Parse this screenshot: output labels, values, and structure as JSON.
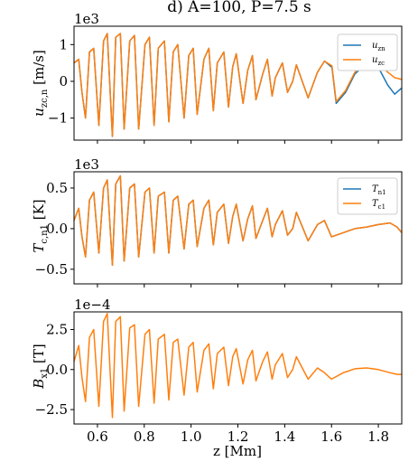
{
  "figure": {
    "title": "d) A=100, P=7.5 s",
    "xlabel": "z [Mm]",
    "xlim": [
      0.5,
      1.9
    ],
    "xticks": [
      0.6,
      0.8,
      1.0,
      1.2,
      1.4,
      1.6,
      1.8
    ],
    "xtick_labels": [
      "0.6",
      "0.8",
      "1.0",
      "1.2",
      "1.4",
      "1.6",
      "1.8"
    ]
  },
  "colors": {
    "series_a": "#1f77b4",
    "series_b": "#ff7f0e"
  },
  "chart_data": [
    {
      "type": "line",
      "title": "d) A=100, P=7.5 s",
      "ylabel_main": "u",
      "ylabel_sub": "zc,n",
      "ylabel_unit": " [m/s]",
      "scale_label": "1e3",
      "xlim": [
        0.5,
        1.9
      ],
      "ylim": [
        -1.6,
        1.5
      ],
      "yticks": [
        -1,
        0,
        1
      ],
      "ytick_labels": [
        "−1",
        "0",
        "1"
      ],
      "legend_position": "top-right",
      "legend": [
        {
          "main": "u",
          "sub": "zn"
        },
        {
          "main": "u",
          "sub": "zc"
        }
      ],
      "series": [
        {
          "name": "u_zn",
          "x": [
            0.5,
            0.52,
            0.534,
            0.549,
            0.566,
            0.584,
            0.606,
            0.626,
            0.642,
            0.664,
            0.678,
            0.698,
            0.714,
            0.738,
            0.758,
            0.776,
            0.803,
            0.822,
            0.842,
            0.86,
            0.886,
            0.905,
            0.924,
            0.943,
            0.97,
            0.99,
            1.009,
            1.026,
            1.055,
            1.076,
            1.095,
            1.112,
            1.14,
            1.16,
            1.178,
            1.193,
            1.222,
            1.242,
            1.262,
            1.277,
            1.306,
            1.326,
            1.346,
            1.36,
            1.39,
            1.412,
            1.434,
            1.45,
            1.5,
            1.54,
            1.57,
            1.602,
            1.62,
            1.66,
            1.7,
            1.75,
            1.8,
            1.84,
            1.87,
            1.9
          ],
          "y": [
            0.5,
            0.6,
            -0.3,
            -1.0,
            0.8,
            0.9,
            -1.2,
            1.1,
            1.3,
            -1.5,
            1.2,
            1.3,
            -1.3,
            1.1,
            1.25,
            -1.3,
            1.0,
            1.2,
            -1.2,
            0.9,
            1.1,
            -1.1,
            0.8,
            1.0,
            -1.0,
            0.7,
            0.9,
            -0.9,
            0.6,
            0.9,
            -0.8,
            0.5,
            0.8,
            -0.7,
            0.4,
            0.75,
            -0.6,
            0.3,
            0.7,
            -0.5,
            0.2,
            0.6,
            -0.4,
            0.1,
            0.5,
            -0.3,
            0.0,
            0.45,
            -0.45,
            0.25,
            0.55,
            0.38,
            -0.6,
            -0.3,
            0.2,
            0.5,
            0.38,
            -0.1,
            -0.35,
            -0.18
          ]
        },
        {
          "name": "u_zc",
          "x": [
            0.5,
            0.52,
            0.534,
            0.549,
            0.566,
            0.584,
            0.606,
            0.626,
            0.642,
            0.664,
            0.678,
            0.698,
            0.714,
            0.738,
            0.758,
            0.776,
            0.803,
            0.822,
            0.842,
            0.86,
            0.886,
            0.905,
            0.924,
            0.943,
            0.97,
            0.99,
            1.009,
            1.026,
            1.055,
            1.076,
            1.095,
            1.112,
            1.14,
            1.16,
            1.178,
            1.193,
            1.222,
            1.242,
            1.262,
            1.277,
            1.306,
            1.326,
            1.346,
            1.36,
            1.39,
            1.412,
            1.434,
            1.45,
            1.5,
            1.54,
            1.57,
            1.602,
            1.62,
            1.66,
            1.7,
            1.75,
            1.8,
            1.84,
            1.87,
            1.9
          ],
          "y": [
            0.5,
            0.6,
            -0.3,
            -1.0,
            0.8,
            0.9,
            -1.2,
            1.1,
            1.3,
            -1.5,
            1.2,
            1.3,
            -1.3,
            1.1,
            1.25,
            -1.3,
            1.0,
            1.2,
            -1.2,
            0.9,
            1.1,
            -1.1,
            0.8,
            1.0,
            -1.0,
            0.7,
            0.9,
            -0.9,
            0.6,
            0.9,
            -0.8,
            0.5,
            0.8,
            -0.7,
            0.4,
            0.75,
            -0.6,
            0.3,
            0.7,
            -0.5,
            0.2,
            0.6,
            -0.4,
            0.1,
            0.5,
            -0.3,
            0.0,
            0.45,
            -0.45,
            0.25,
            0.55,
            0.42,
            -0.55,
            -0.25,
            0.25,
            0.58,
            0.52,
            0.25,
            0.1,
            0.05
          ]
        }
      ]
    },
    {
      "type": "line",
      "ylabel_main": "T",
      "ylabel_sub": "c,n1",
      "ylabel_unit": " [K]",
      "scale_label": "1e3",
      "xlim": [
        0.5,
        1.9
      ],
      "ylim": [
        -0.68,
        0.7
      ],
      "yticks": [
        -0.5,
        0.0,
        0.5
      ],
      "ytick_labels": [
        "−0.5",
        "0.0",
        "0.5"
      ],
      "legend_position": "top-right",
      "legend": [
        {
          "main": "T",
          "sub": "n1"
        },
        {
          "main": "T",
          "sub": "c1"
        }
      ],
      "series": [
        {
          "name": "T_n1",
          "x": [
            0.5,
            0.52,
            0.534,
            0.549,
            0.566,
            0.584,
            0.606,
            0.626,
            0.642,
            0.664,
            0.678,
            0.698,
            0.714,
            0.738,
            0.758,
            0.776,
            0.803,
            0.822,
            0.842,
            0.86,
            0.886,
            0.905,
            0.924,
            0.943,
            0.97,
            0.99,
            1.009,
            1.026,
            1.055,
            1.076,
            1.095,
            1.112,
            1.14,
            1.16,
            1.178,
            1.193,
            1.222,
            1.242,
            1.262,
            1.277,
            1.306,
            1.326,
            1.346,
            1.36,
            1.39,
            1.412,
            1.434,
            1.45,
            1.5,
            1.54,
            1.57,
            1.6,
            1.65,
            1.7,
            1.75,
            1.8,
            1.85,
            1.88,
            1.9
          ],
          "y": [
            0.1,
            0.25,
            -0.1,
            -0.35,
            0.35,
            0.45,
            -0.3,
            0.5,
            0.6,
            -0.45,
            0.55,
            0.65,
            -0.4,
            0.5,
            0.55,
            -0.35,
            0.45,
            0.5,
            -0.3,
            0.4,
            0.45,
            -0.3,
            0.35,
            0.4,
            -0.25,
            0.3,
            0.35,
            -0.22,
            0.25,
            0.35,
            -0.2,
            0.2,
            0.3,
            -0.18,
            0.15,
            0.3,
            -0.15,
            0.12,
            0.28,
            -0.12,
            0.1,
            0.25,
            -0.1,
            0.05,
            0.22,
            -0.08,
            0.0,
            0.2,
            -0.15,
            0.05,
            0.1,
            -0.1,
            -0.05,
            0.0,
            0.02,
            0.05,
            0.07,
            0.02,
            -0.05
          ]
        },
        {
          "name": "T_c1",
          "x": [
            0.5,
            0.52,
            0.534,
            0.549,
            0.566,
            0.584,
            0.606,
            0.626,
            0.642,
            0.664,
            0.678,
            0.698,
            0.714,
            0.738,
            0.758,
            0.776,
            0.803,
            0.822,
            0.842,
            0.86,
            0.886,
            0.905,
            0.924,
            0.943,
            0.97,
            0.99,
            1.009,
            1.026,
            1.055,
            1.076,
            1.095,
            1.112,
            1.14,
            1.16,
            1.178,
            1.193,
            1.222,
            1.242,
            1.262,
            1.277,
            1.306,
            1.326,
            1.346,
            1.36,
            1.39,
            1.412,
            1.434,
            1.45,
            1.5,
            1.54,
            1.57,
            1.6,
            1.65,
            1.7,
            1.75,
            1.8,
            1.85,
            1.88,
            1.9
          ],
          "y": [
            0.1,
            0.25,
            -0.1,
            -0.35,
            0.35,
            0.45,
            -0.3,
            0.5,
            0.6,
            -0.45,
            0.55,
            0.65,
            -0.4,
            0.5,
            0.55,
            -0.35,
            0.45,
            0.5,
            -0.3,
            0.4,
            0.45,
            -0.3,
            0.35,
            0.4,
            -0.25,
            0.3,
            0.35,
            -0.22,
            0.25,
            0.35,
            -0.2,
            0.2,
            0.3,
            -0.18,
            0.15,
            0.3,
            -0.15,
            0.12,
            0.28,
            -0.12,
            0.1,
            0.25,
            -0.1,
            0.05,
            0.22,
            -0.08,
            0.0,
            0.2,
            -0.15,
            0.05,
            0.1,
            -0.1,
            -0.05,
            0.0,
            0.02,
            0.05,
            0.07,
            0.02,
            -0.05
          ]
        }
      ]
    },
    {
      "type": "line",
      "ylabel_main": "B",
      "ylabel_sub": "x1",
      "ylabel_unit": " [T]",
      "scale_label": "1e−4",
      "xlim": [
        0.5,
        1.9
      ],
      "ylim": [
        -3.4,
        3.6
      ],
      "yticks": [
        -2.5,
        0.0,
        2.5
      ],
      "ytick_labels": [
        "−2.5",
        "0.0",
        "2.5"
      ],
      "series": [
        {
          "name": "B_x1",
          "x": [
            0.5,
            0.52,
            0.534,
            0.549,
            0.566,
            0.584,
            0.606,
            0.626,
            0.642,
            0.664,
            0.678,
            0.698,
            0.714,
            0.738,
            0.758,
            0.776,
            0.803,
            0.822,
            0.842,
            0.86,
            0.886,
            0.905,
            0.924,
            0.943,
            0.97,
            0.99,
            1.009,
            1.026,
            1.055,
            1.076,
            1.095,
            1.112,
            1.14,
            1.16,
            1.178,
            1.193,
            1.222,
            1.242,
            1.262,
            1.277,
            1.306,
            1.326,
            1.346,
            1.36,
            1.39,
            1.412,
            1.434,
            1.45,
            1.5,
            1.54,
            1.57,
            1.6,
            1.65,
            1.7,
            1.75,
            1.8,
            1.85,
            1.88,
            1.9
          ],
          "y": [
            0.5,
            1.5,
            -0.5,
            -2.0,
            2.0,
            2.5,
            -2.3,
            3.0,
            3.5,
            -3.0,
            3.0,
            3.3,
            -2.6,
            2.6,
            2.8,
            -2.3,
            2.2,
            2.5,
            -2.1,
            1.9,
            2.2,
            -1.9,
            1.7,
            1.9,
            -1.6,
            1.4,
            1.7,
            -1.4,
            1.2,
            1.6,
            -1.2,
            1.0,
            1.4,
            -1.0,
            0.8,
            1.3,
            -0.9,
            0.6,
            1.2,
            -0.7,
            0.5,
            1.1,
            -0.6,
            0.3,
            1.0,
            -0.5,
            0.0,
            0.8,
            -0.6,
            0.1,
            -0.2,
            -0.6,
            -0.2,
            0.05,
            0.1,
            0.0,
            -0.2,
            -0.3,
            -0.3
          ]
        }
      ]
    }
  ]
}
